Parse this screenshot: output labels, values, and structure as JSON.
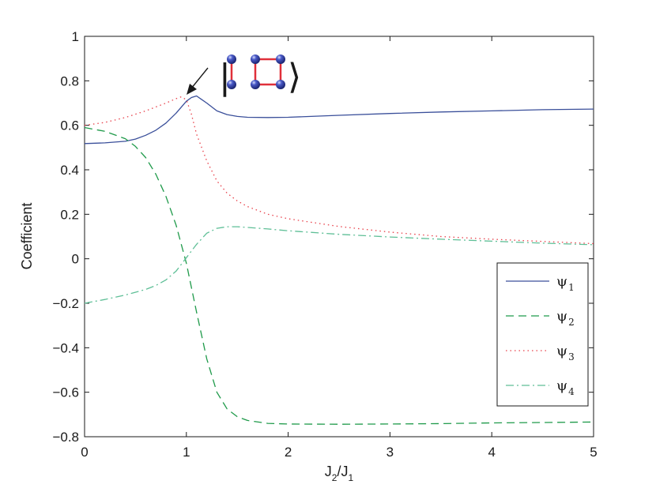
{
  "chart_data": {
    "type": "line",
    "title": "",
    "xlabel": {
      "main": "J",
      "sub1": "2",
      "slash": "/J",
      "sub2": "1"
    },
    "ylabel": "Coefficient",
    "xlim": [
      0,
      5
    ],
    "ylim": [
      -0.8,
      1
    ],
    "xticks": [
      0,
      1,
      2,
      3,
      4,
      5
    ],
    "xtick_labels": [
      "0",
      "1",
      "2",
      "3",
      "4",
      "5"
    ],
    "yticks": [
      -0.8,
      -0.6,
      -0.4,
      -0.2,
      0,
      0.2,
      0.4,
      0.6,
      0.8,
      1
    ],
    "ytick_labels": [
      "−0.8",
      "−0.6",
      "−0.4",
      "−0.2",
      "0",
      "0.2",
      "0.4",
      "0.6",
      "0.8",
      "1"
    ],
    "grid": false,
    "legend_position": "lower-right",
    "series": [
      {
        "name": "ψ",
        "sub": "1",
        "color": "#3a4f9a",
        "dash": "solid",
        "x": [
          0,
          0.2,
          0.4,
          0.5,
          0.6,
          0.7,
          0.8,
          0.9,
          1.0,
          1.05,
          1.1,
          1.2,
          1.3,
          1.4,
          1.5,
          1.6,
          1.8,
          2.0,
          2.5,
          3.0,
          3.5,
          4.0,
          4.5,
          5.0
        ],
        "y": [
          0.518,
          0.521,
          0.528,
          0.538,
          0.555,
          0.578,
          0.61,
          0.655,
          0.708,
          0.725,
          0.732,
          0.7,
          0.665,
          0.648,
          0.64,
          0.636,
          0.635,
          0.636,
          0.645,
          0.653,
          0.66,
          0.665,
          0.67,
          0.673
        ]
      },
      {
        "name": "ψ",
        "sub": "2",
        "color": "#1f9a4a",
        "dash": "10,6",
        "x": [
          0,
          0.2,
          0.4,
          0.5,
          0.6,
          0.7,
          0.8,
          0.9,
          1.0,
          1.1,
          1.2,
          1.3,
          1.4,
          1.5,
          1.6,
          1.8,
          2.0,
          2.5,
          3.0,
          3.5,
          4.0,
          4.5,
          5.0
        ],
        "y": [
          0.59,
          0.573,
          0.54,
          0.505,
          0.455,
          0.38,
          0.28,
          0.15,
          -0.02,
          -0.24,
          -0.45,
          -0.6,
          -0.675,
          -0.71,
          -0.727,
          -0.74,
          -0.743,
          -0.744,
          -0.743,
          -0.741,
          -0.738,
          -0.736,
          -0.734
        ]
      },
      {
        "name": "ψ",
        "sub": "3",
        "color": "#e8404a",
        "dash": "1.5,4",
        "x": [
          0,
          0.2,
          0.4,
          0.6,
          0.8,
          0.9,
          0.95,
          1.0,
          1.05,
          1.1,
          1.2,
          1.3,
          1.4,
          1.5,
          1.6,
          1.8,
          2.0,
          2.5,
          3.0,
          3.5,
          4.0,
          4.5,
          5.0
        ],
        "y": [
          0.6,
          0.613,
          0.635,
          0.665,
          0.7,
          0.72,
          0.728,
          0.715,
          0.65,
          0.56,
          0.44,
          0.35,
          0.295,
          0.26,
          0.235,
          0.2,
          0.18,
          0.145,
          0.12,
          0.1,
          0.088,
          0.078,
          0.068
        ]
      },
      {
        "name": "ψ",
        "sub": "4",
        "color": "#5fbf97",
        "dash": "10,4,2,4",
        "x": [
          0,
          0.2,
          0.4,
          0.6,
          0.7,
          0.8,
          0.9,
          1.0,
          1.1,
          1.2,
          1.3,
          1.4,
          1.5,
          1.6,
          1.8,
          2.0,
          2.5,
          3.0,
          3.5,
          4.0,
          4.5,
          5.0
        ],
        "y": [
          -0.2,
          -0.183,
          -0.163,
          -0.138,
          -0.12,
          -0.095,
          -0.055,
          0.005,
          0.065,
          0.115,
          0.137,
          0.144,
          0.144,
          0.141,
          0.134,
          0.126,
          0.11,
          0.098,
          0.088,
          0.079,
          0.07,
          0.063
        ]
      }
    ],
    "annotation": {
      "target_x": 1.0,
      "target_y": 0.708,
      "ket_left": "|",
      "ket_right": "⟩"
    }
  }
}
